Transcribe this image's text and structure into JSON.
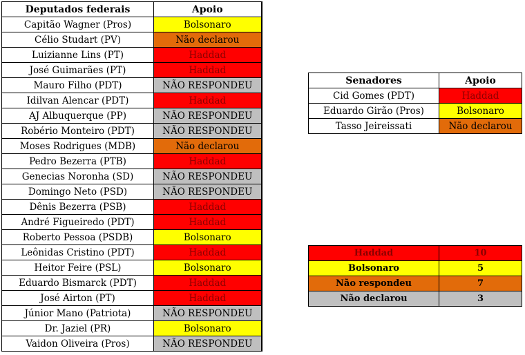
{
  "deputados": {
    "header": {
      "name": "Deputados federais",
      "support": "Apoio"
    },
    "rows": [
      {
        "name": "Capitão Wagner (Pros)",
        "support": "Bolsonaro",
        "cls": "v-bolsonaro"
      },
      {
        "name": "Célio Studart (PV)",
        "support": "Não declarou",
        "cls": "v-naodeclarou"
      },
      {
        "name": "Luizianne Lins (PT)",
        "support": "Haddad",
        "cls": "v-haddad"
      },
      {
        "name": "José Guimarães (PT)",
        "support": "Haddad",
        "cls": "v-haddad"
      },
      {
        "name": "Mauro Filho (PDT)",
        "support": "NÃO RESPONDEU",
        "cls": "v-naorespondeu"
      },
      {
        "name": "Idilvan Alencar (PDT)",
        "support": "Haddad",
        "cls": "v-haddad"
      },
      {
        "name": "AJ Albuquerque (PP)",
        "support": "NÃO RESPONDEU",
        "cls": "v-naorespondeu"
      },
      {
        "name": "Robério Monteiro (PDT)",
        "support": "NÃO RESPONDEU",
        "cls": "v-naorespondeu"
      },
      {
        "name": "Moses Rodrigues (MDB)",
        "support": "Não declarou",
        "cls": "v-naodeclarou"
      },
      {
        "name": "Pedro Bezerra (PTB)",
        "support": "Haddad",
        "cls": "v-haddad"
      },
      {
        "name": "Genecias Noronha (SD)",
        "support": "NÃO RESPONDEU",
        "cls": "v-naorespondeu"
      },
      {
        "name": "Domingo Neto (PSD)",
        "support": "NÃO RESPONDEU",
        "cls": "v-naorespondeu"
      },
      {
        "name": "Dênis Bezerra (PSB)",
        "support": "Haddad",
        "cls": "v-haddad"
      },
      {
        "name": "André Figueiredo (PDT)",
        "support": "Haddad",
        "cls": "v-haddad"
      },
      {
        "name": "Roberto Pessoa (PSDB)",
        "support": "Bolsonaro",
        "cls": "v-bolsonaro"
      },
      {
        "name": "Leônidas Cristino (PDT)",
        "support": "Haddad",
        "cls": "v-haddad"
      },
      {
        "name": "Heitor Feire (PSL)",
        "support": "Bolsonaro",
        "cls": "v-bolsonaro"
      },
      {
        "name": "Eduardo Bismarck (PDT)",
        "support": "Haddad",
        "cls": "v-haddad"
      },
      {
        "name": "José Airton (PT)",
        "support": "Haddad",
        "cls": "v-haddad"
      },
      {
        "name": "Júnior Mano (Patriota)",
        "support": "NÃO RESPONDEU",
        "cls": "v-naorespondeu"
      },
      {
        "name": "Dr. Jaziel (PR)",
        "support": "Bolsonaro",
        "cls": "v-bolsonaro"
      },
      {
        "name": "Vaidon Oliveira (Pros)",
        "support": "NÃO RESPONDEU",
        "cls": "v-naorespondeu"
      }
    ]
  },
  "senadores": {
    "header": {
      "name": "Senadores",
      "support": "Apoio"
    },
    "rows": [
      {
        "name": "Cid Gomes (PDT)",
        "support": "Haddad",
        "cls": "v-haddad"
      },
      {
        "name": "Eduardo Girão (Pros)",
        "support": "Bolsonaro",
        "cls": "v-bolsonaro"
      },
      {
        "name": "Tasso Jeireissati",
        "support": "Não declarou",
        "cls": "v-naodeclarou"
      }
    ]
  },
  "resumo": {
    "rows": [
      {
        "label": "Haddad",
        "count": "10",
        "cls": "v-haddad"
      },
      {
        "label": "Bolsonaro",
        "count": "5",
        "cls": "v-bolsonaro"
      },
      {
        "label": "Não respondeu",
        "count": "7",
        "cls": "v-naodeclarou"
      },
      {
        "label": "Não declarou",
        "count": "3",
        "cls": "v-naorespondeu"
      }
    ]
  },
  "colors": {
    "haddad": "#ff0000",
    "bolsonaro": "#ffff00",
    "nao_declarou": "#e26b0a",
    "nao_respondeu": "#bfbfbf"
  }
}
